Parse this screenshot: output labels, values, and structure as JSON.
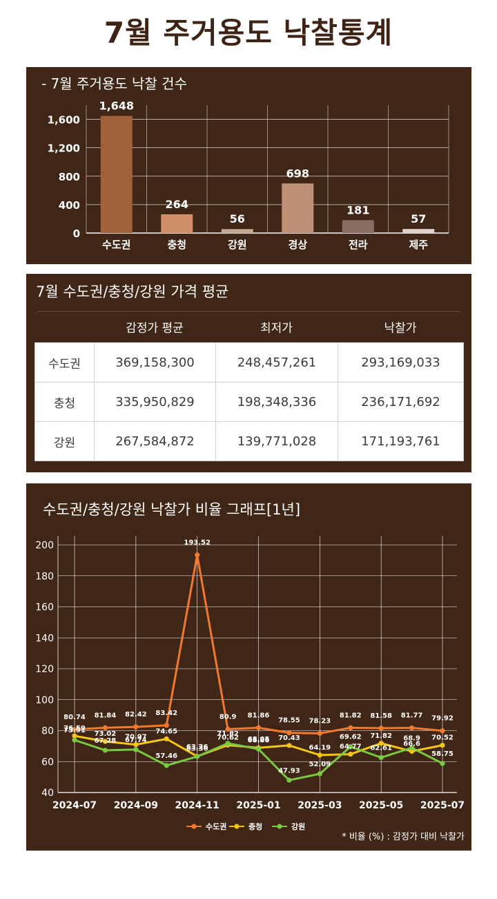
{
  "page_title": "7월 주거용도 낙찰통계",
  "bar_section": {
    "title": "- 7월 주거용도 낙찰 건수"
  },
  "table_section": {
    "title": "7월 수도권/충청/강원 가격 평균",
    "headers": [
      "감정가 평균",
      "최저가",
      "낙찰가"
    ],
    "rows": [
      {
        "label": "수도권",
        "cells": [
          "369,158,300",
          "248,457,261",
          "293,169,033"
        ]
      },
      {
        "label": "충청",
        "cells": [
          "335,950,829",
          "198,348,336",
          "236,171,692"
        ]
      },
      {
        "label": "강원",
        "cells": [
          "267,584,872",
          "139,771,028",
          "171,193,761"
        ]
      }
    ]
  },
  "line_section": {
    "title": "수도권/충청/강원 낙찰가 비율 그래프[1년]",
    "note": "* 비율 (%) : 감정가 대비 낙찰가"
  },
  "chart_data": [
    {
      "type": "bar",
      "categories": [
        "수도권",
        "충청",
        "강원",
        "경상",
        "전라",
        "제주"
      ],
      "values": [
        1648,
        264,
        56,
        698,
        181,
        57
      ],
      "value_labels": [
        "1,648",
        "264",
        "56",
        "698",
        "181",
        "57"
      ],
      "yticks": [
        "0",
        "400",
        "800",
        "1,200",
        "1,600"
      ],
      "ylim": [
        0,
        1800
      ],
      "colors": [
        "#a0623a",
        "#d08e68",
        "#c5a894",
        "#be9076",
        "#8a6e63",
        "#e0d2ca"
      ],
      "grid": true
    },
    {
      "type": "line",
      "x": [
        "2024-07",
        "2024-08",
        "2024-09",
        "2024-10",
        "2024-11",
        "2024-12",
        "2025-01",
        "2025-02",
        "2025-03",
        "2025-04",
        "2025-05",
        "2025-06",
        "2025-07"
      ],
      "xticks": [
        "2024-07",
        "2024-09",
        "2024-11",
        "2025-01",
        "2025-03",
        "2025-05",
        "2025-07"
      ],
      "ylim": [
        40,
        200
      ],
      "yticks": [
        "40",
        "60",
        "80",
        "100",
        "120",
        "140",
        "160",
        "180",
        "200"
      ],
      "legend": "bottom-center",
      "grid": true,
      "series": [
        {
          "name": "수도권",
          "color": "#f07a30",
          "values": [
            80.74,
            81.84,
            82.42,
            83.42,
            193.52,
            80.9,
            81.86,
            78.55,
            78.23,
            81.82,
            81.58,
            81.77,
            79.92
          ]
        },
        {
          "name": "충청",
          "color": "#f5c518",
          "values": [
            76.59,
            73.02,
            70.97,
            74.65,
            63.36,
            70.62,
            68.86,
            70.43,
            64.19,
            64.77,
            71.82,
            66.6,
            70.52
          ]
        },
        {
          "name": "강원",
          "color": "#7ac943",
          "values": [
            73.91,
            67.28,
            67.74,
            57.46,
            63.26,
            71.82,
            68.05,
            47.93,
            52.09,
            69.62,
            62.61,
            68.9,
            58.75
          ]
        }
      ]
    }
  ]
}
